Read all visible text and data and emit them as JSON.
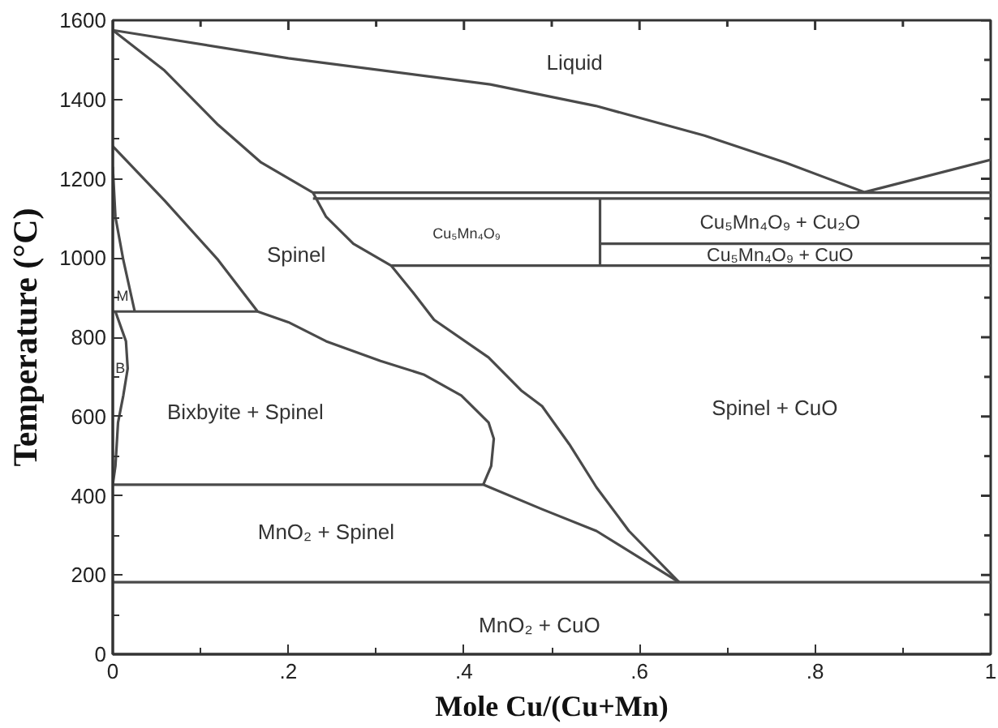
{
  "chart_data": {
    "type": "line",
    "xlabel": "Mole Cu/(Cu+Mn)",
    "ylabel": "Temperature (°C)",
    "xlim": [
      0,
      1
    ],
    "ylim": [
      0,
      1600
    ],
    "xticks": [
      0,
      {
        "value": 0.1,
        "label": null
      },
      {
        "value": 0.2,
        "label": ".2"
      },
      {
        "value": 0.3,
        "label": null
      },
      {
        "value": 0.4,
        "label": ".4"
      },
      {
        "value": 0.5,
        "label": null
      },
      {
        "value": 0.6,
        "label": ".6"
      },
      {
        "value": 0.7,
        "label": null
      },
      {
        "value": 0.8,
        "label": ".8"
      },
      {
        "value": 0.9,
        "label": null
      },
      1
    ],
    "yticks": [
      0,
      {
        "value": 100,
        "label": null
      },
      200,
      {
        "value": 300,
        "label": null
      },
      400,
      {
        "value": 500,
        "label": null
      },
      600,
      {
        "value": 700,
        "label": null
      },
      800,
      {
        "value": 900,
        "label": null
      },
      1000,
      {
        "value": 1100,
        "label": null
      },
      1200,
      {
        "value": 1300,
        "label": null
      },
      1400,
      {
        "value": 1500,
        "label": null
      },
      1600
    ],
    "series": [
      {
        "color": "#4a4a4a",
        "x": [
          0,
          0.2,
          0.43,
          0.55,
          0.674,
          0.766,
          0.856,
          1.0
        ],
        "values": [
          1575,
          1504,
          1438,
          1384,
          1309,
          1241,
          1166,
          1248
        ]
      },
      {
        "color": "#4a4a4a",
        "x": [
          0,
          0.059,
          0.12,
          0.169,
          0.228,
          0.243,
          0.274,
          0.317,
          0.342,
          0.366,
          0.428,
          0.465,
          0.489,
          0.52,
          0.551,
          0.588,
          0.645
        ],
        "values": [
          1575,
          1473,
          1336,
          1241,
          1165,
          1104,
          1036,
          981,
          913,
          844,
          749,
          666,
          626,
          530,
          421,
          311,
          182
        ]
      },
      {
        "color": "#4a4a4a",
        "x": [
          0,
          0.059,
          0.12,
          0.165,
          0.2,
          0.243,
          0.305,
          0.354,
          0.397,
          0.428,
          0.434,
          0.431,
          0.422
        ],
        "values": [
          1282,
          1145,
          995,
          865,
          838,
          790,
          740,
          706,
          653,
          585,
          544,
          475,
          428
        ]
      },
      {
        "color": "#4a4a4a",
        "x": [
          0,
          0.422,
          0.489,
          0.551,
          0.645
        ],
        "values": [
          428,
          428,
          366,
          311,
          182
        ]
      },
      {
        "color": "#4a4a4a",
        "x": [
          0,
          0.003,
          0.012,
          0.025
        ],
        "values": [
          1230,
          1104,
          995,
          865
        ]
      },
      {
        "color": "#4a4a4a",
        "x": [
          0.003,
          0.015,
          0.017,
          0.012,
          0.006,
          0.003,
          0
        ],
        "values": [
          865,
          790,
          721,
          653,
          585,
          475,
          428
        ]
      },
      {
        "color": "#4a4a4a",
        "x": [
          0,
          0.165
        ],
        "values": [
          865,
          865
        ]
      },
      {
        "color": "#4a4a4a",
        "x": [
          0,
          1
        ],
        "values": [
          182,
          182
        ]
      },
      {
        "color": "#4a4a4a",
        "x": [
          0.228,
          1
        ],
        "values": [
          1165,
          1165
        ]
      },
      {
        "color": "#4a4a4a",
        "x": [
          0.228,
          1
        ],
        "values": [
          1150,
          1150
        ]
      },
      {
        "color": "#4a4a4a",
        "x": [
          0.317,
          1
        ],
        "values": [
          981,
          981
        ]
      },
      {
        "color": "#4a4a4a",
        "x": [
          0.555,
          1
        ],
        "values": [
          1036,
          1036
        ]
      },
      {
        "color": "#4a4a4a",
        "x": [
          0.555,
          0.555
        ],
        "values": [
          1150,
          981
        ]
      }
    ],
    "annotations": [
      "Liquid",
      "Spinel",
      "Cu₅Mn₄O₉",
      "Cu₅Mn₄O₉ + Cu₂O",
      "Cu₅Mn₄O₉ + CuO",
      "M",
      "B",
      "Bixbyite + Spinel",
      "MnO₂ + Spinel",
      "Spinel + CuO",
      "MnO₂ + CuO"
    ]
  }
}
